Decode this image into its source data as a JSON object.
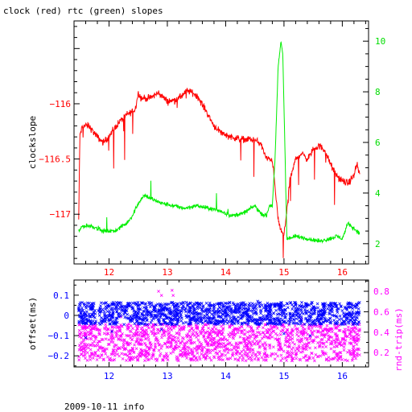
{
  "title": "clock (red) rtc (green) slopes",
  "footer": "2009-10-11 info",
  "colors": {
    "clock": "#ff0000",
    "rtc": "#00ee00",
    "offset": "#0000ff",
    "rndtrip": "#ff00ff",
    "axis": "#000000"
  },
  "chart_data": [
    {
      "type": "line",
      "title": "clock (red) rtc (green) slopes",
      "xlabel": "",
      "ylabel": "clockslope",
      "y2label": "",
      "xlim": [
        11.4,
        16.45
      ],
      "ylim": [
        -117.45,
        -115.25
      ],
      "y2lim": [
        1.2,
        10.8
      ],
      "x_ticks": [
        12,
        13,
        14,
        15,
        16
      ],
      "y_ticks": [
        -116,
        -116.5,
        -117
      ],
      "y2_ticks": [
        2,
        4,
        6,
        8,
        10
      ],
      "grid": false,
      "series": [
        {
          "name": "clock",
          "axis": "left",
          "x": [
            11.48,
            11.5,
            11.55,
            11.65,
            11.8,
            11.9,
            12.0,
            12.15,
            12.3,
            12.45,
            12.5,
            12.55,
            12.7,
            12.85,
            13.0,
            13.1,
            13.2,
            13.35,
            13.5,
            13.65,
            13.8,
            13.95,
            14.1,
            14.25,
            14.4,
            14.5,
            14.6,
            14.7,
            14.8,
            14.9,
            14.95,
            15.0,
            15.1,
            15.2,
            15.3,
            15.4,
            15.5,
            15.6,
            15.7,
            15.8,
            15.9,
            16.0,
            16.1,
            16.2,
            16.25,
            16.3
          ],
          "values": [
            -117.05,
            -116.28,
            -116.2,
            -116.2,
            -116.3,
            -116.35,
            -116.3,
            -116.18,
            -116.1,
            -116.05,
            -115.9,
            -115.95,
            -115.95,
            -115.9,
            -115.98,
            -115.97,
            -115.95,
            -115.88,
            -115.92,
            -116.05,
            -116.2,
            -116.27,
            -116.3,
            -116.32,
            -116.32,
            -116.33,
            -116.36,
            -116.5,
            -116.5,
            -117.05,
            -117.15,
            -117.2,
            -116.7,
            -116.5,
            -116.45,
            -116.5,
            -116.42,
            -116.38,
            -116.42,
            -116.55,
            -116.65,
            -116.7,
            -116.72,
            -116.65,
            -116.55,
            -116.65
          ]
        },
        {
          "name": "rtc",
          "axis": "right",
          "x": [
            11.48,
            11.55,
            11.7,
            11.9,
            12.1,
            12.3,
            12.4,
            12.5,
            12.6,
            12.7,
            12.9,
            13.1,
            13.3,
            13.5,
            13.7,
            13.9,
            14.1,
            14.3,
            14.5,
            14.6,
            14.7,
            14.75,
            14.8,
            14.85,
            14.9,
            14.95,
            14.98,
            15.05,
            15.1,
            15.2,
            15.4,
            15.6,
            15.8,
            15.9,
            16.0,
            16.1,
            16.2,
            16.3
          ],
          "values": [
            2.5,
            2.7,
            2.7,
            2.5,
            2.5,
            2.8,
            3.1,
            3.6,
            3.9,
            3.8,
            3.6,
            3.5,
            3.4,
            3.5,
            3.4,
            3.3,
            3.1,
            3.2,
            3.5,
            3.2,
            3.1,
            3.5,
            3.5,
            5.5,
            9.0,
            10.0,
            9.5,
            2.2,
            2.2,
            2.3,
            2.2,
            2.1,
            2.2,
            2.3,
            2.2,
            2.8,
            2.6,
            2.4
          ]
        }
      ]
    },
    {
      "type": "scatter",
      "title": "",
      "xlabel": "",
      "ylabel": "offset(ms)",
      "y2label": "rnd-trip(ms)",
      "xlim": [
        11.4,
        16.45
      ],
      "ylim": [
        -0.255,
        0.175
      ],
      "y2lim": [
        0.06,
        0.91
      ],
      "x_ticks": [
        12,
        13,
        14,
        15,
        16
      ],
      "y_ticks": [
        0.1,
        0,
        -0.1,
        -0.2
      ],
      "y2_ticks": [
        0.2,
        0.4,
        0.6,
        0.8
      ],
      "grid": false,
      "series": [
        {
          "name": "offset",
          "axis": "left",
          "marker": "x",
          "x_range": [
            11.48,
            16.3
          ],
          "band": [
            -0.045,
            0.065
          ],
          "typical_range": [
            -0.04,
            0.06
          ],
          "outliers": [
            [
              11.6,
              -0.11
            ],
            [
              12.05,
              -0.08
            ],
            [
              12.9,
              -0.07
            ],
            [
              14.55,
              0.07
            ],
            [
              15.0,
              -0.09
            ],
            [
              15.45,
              -0.1
            ]
          ]
        },
        {
          "name": "rnd-trip",
          "axis": "right",
          "marker": "x",
          "x_range": [
            11.48,
            16.3
          ],
          "band": [
            0.12,
            0.48
          ],
          "typical_range": [
            0.14,
            0.46
          ],
          "outliers": [
            [
              12.85,
              0.8
            ],
            [
              12.9,
              0.76
            ],
            [
              13.08,
              0.81
            ],
            [
              13.1,
              0.76
            ],
            [
              12.2,
              0.55
            ],
            [
              14.6,
              0.52
            ],
            [
              15.3,
              0.53
            ]
          ]
        }
      ]
    }
  ]
}
